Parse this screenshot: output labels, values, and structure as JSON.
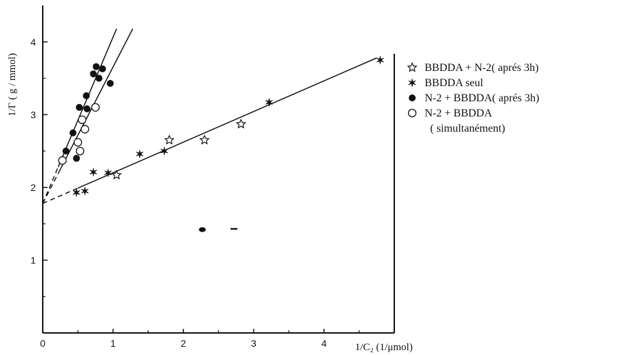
{
  "chart_data": {
    "type": "scatter",
    "xlabel": "1/C₂ (1/μmol)",
    "ylabel": "1/Γ ( g / mmol)",
    "xlim": [
      0,
      5.0
    ],
    "ylim": [
      0,
      4.5
    ],
    "xticks": [
      0,
      1,
      2,
      3,
      4
    ],
    "yticks": [
      1,
      2,
      3,
      4
    ],
    "grid": false,
    "legend": "right",
    "series": [
      {
        "name": "BBDDA + N-2( aprés 3h)",
        "marker": "open-star",
        "points": [
          [
            1.05,
            2.17
          ],
          [
            1.8,
            2.65
          ],
          [
            2.3,
            2.65
          ],
          [
            2.82,
            2.87
          ]
        ]
      },
      {
        "name": "BBDDA seul",
        "marker": "filled-star",
        "points": [
          [
            0.48,
            1.93
          ],
          [
            0.6,
            1.95
          ],
          [
            0.72,
            2.21
          ],
          [
            0.93,
            2.2
          ],
          [
            1.38,
            2.46
          ],
          [
            1.73,
            2.5
          ],
          [
            3.22,
            3.17
          ],
          [
            4.8,
            3.75
          ]
        ]
      },
      {
        "name": "N-2 + BBDDA( aprés 3h)",
        "marker": "filled-circle",
        "points": [
          [
            0.33,
            2.5
          ],
          [
            0.43,
            2.75
          ],
          [
            0.48,
            2.4
          ],
          [
            0.52,
            3.1
          ],
          [
            0.62,
            3.26
          ],
          [
            0.63,
            3.08
          ],
          [
            0.72,
            3.56
          ],
          [
            0.76,
            3.66
          ],
          [
            0.8,
            3.5
          ],
          [
            0.85,
            3.63
          ],
          [
            0.96,
            3.43
          ]
        ]
      },
      {
        "name": "N-2 + BBDDA",
        "name_line2": "( simultanément)",
        "marker": "open-circle",
        "points": [
          [
            0.28,
            2.37
          ],
          [
            0.5,
            2.62
          ],
          [
            0.53,
            2.5
          ],
          [
            0.56,
            2.93
          ],
          [
            0.6,
            2.8
          ],
          [
            0.75,
            3.1
          ]
        ]
      }
    ],
    "fit_lines": [
      {
        "x0": 0.0,
        "y0": 1.78,
        "x1": 4.75,
        "y1": 3.78,
        "dash_until": 0.5
      },
      {
        "x0": 0.0,
        "y0": 1.78,
        "x1": 1.05,
        "y1": 4.18,
        "dash_until": 0.22
      },
      {
        "x0": 0.0,
        "y0": 1.78,
        "x1": 1.28,
        "y1": 4.18,
        "dash_until": 0.22
      }
    ],
    "extra_marks": [
      [
        2.27,
        1.42
      ],
      [
        2.72,
        1.43
      ]
    ]
  }
}
